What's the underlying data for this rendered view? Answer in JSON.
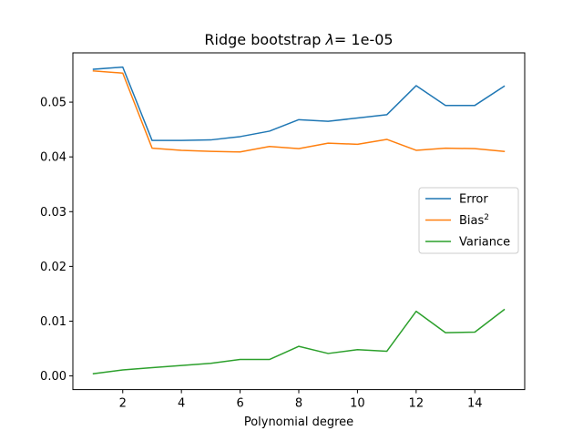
{
  "chart_data": {
    "type": "line",
    "title_prefix": "Ridge bootstrap ",
    "title_symbol": "λ",
    "title_suffix": "= 1e-05",
    "xlabel": "Polynomial degree",
    "ylabel": "",
    "x": [
      1,
      2,
      3,
      4,
      5,
      6,
      7,
      8,
      9,
      10,
      11,
      12,
      13,
      14,
      15
    ],
    "xlim": [
      0.3,
      15.7
    ],
    "ylim": [
      -0.0025,
      0.059
    ],
    "xticks": [
      "2",
      "4",
      "6",
      "8",
      "10",
      "12",
      "14"
    ],
    "xtick_values": [
      2,
      4,
      6,
      8,
      10,
      12,
      14
    ],
    "yticks": [
      "0.00",
      "0.01",
      "0.02",
      "0.03",
      "0.04",
      "0.05"
    ],
    "ytick_values": [
      0.0,
      0.01,
      0.02,
      0.03,
      0.04,
      0.05
    ],
    "grid": false,
    "legend_position": "center-right",
    "series": [
      {
        "name": "Error",
        "legend_base": "Error",
        "legend_sup": "",
        "color": "#1f77b4",
        "values": [
          0.056,
          0.0564,
          0.043,
          0.043,
          0.0431,
          0.0437,
          0.0447,
          0.0468,
          0.0465,
          0.0471,
          0.0477,
          0.053,
          0.0494,
          0.0494,
          0.0529
        ]
      },
      {
        "name": "Bias^2",
        "legend_base": "Bias",
        "legend_sup": "2",
        "color": "#ff7f0e",
        "values": [
          0.0557,
          0.0553,
          0.0416,
          0.0412,
          0.041,
          0.0409,
          0.0419,
          0.0415,
          0.0425,
          0.0423,
          0.0432,
          0.0412,
          0.0416,
          0.0415,
          0.041
        ]
      },
      {
        "name": "Variance",
        "legend_base": "Variance",
        "legend_sup": "",
        "color": "#2ca02c",
        "values": [
          0.0004,
          0.0011,
          0.0015,
          0.0019,
          0.0023,
          0.003,
          0.003,
          0.0054,
          0.0041,
          0.0048,
          0.0045,
          0.0118,
          0.0079,
          0.008,
          0.0121
        ]
      }
    ]
  }
}
